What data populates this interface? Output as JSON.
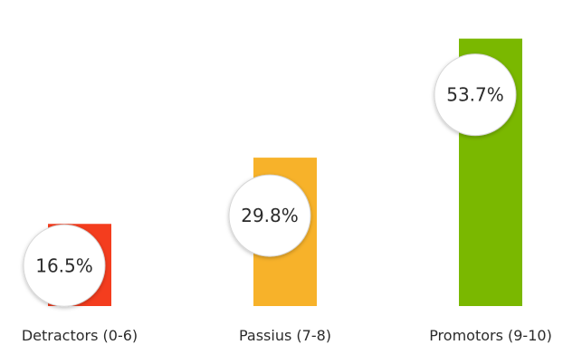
{
  "chart_data": {
    "type": "bar",
    "categories": [
      "Detractors (0-6)",
      "Passius (7-8)",
      "Promotors (9-10)"
    ],
    "values": [
      16.5,
      29.8,
      53.7
    ],
    "value_labels": [
      "16.5%",
      "29.8%",
      "53.7%"
    ],
    "colors": [
      "#f43d1e",
      "#f7b22a",
      "#7ab800"
    ],
    "ylim": [
      0,
      60
    ],
    "grid": false,
    "legend": "none",
    "title": "",
    "xlabel": "",
    "ylabel": ""
  }
}
